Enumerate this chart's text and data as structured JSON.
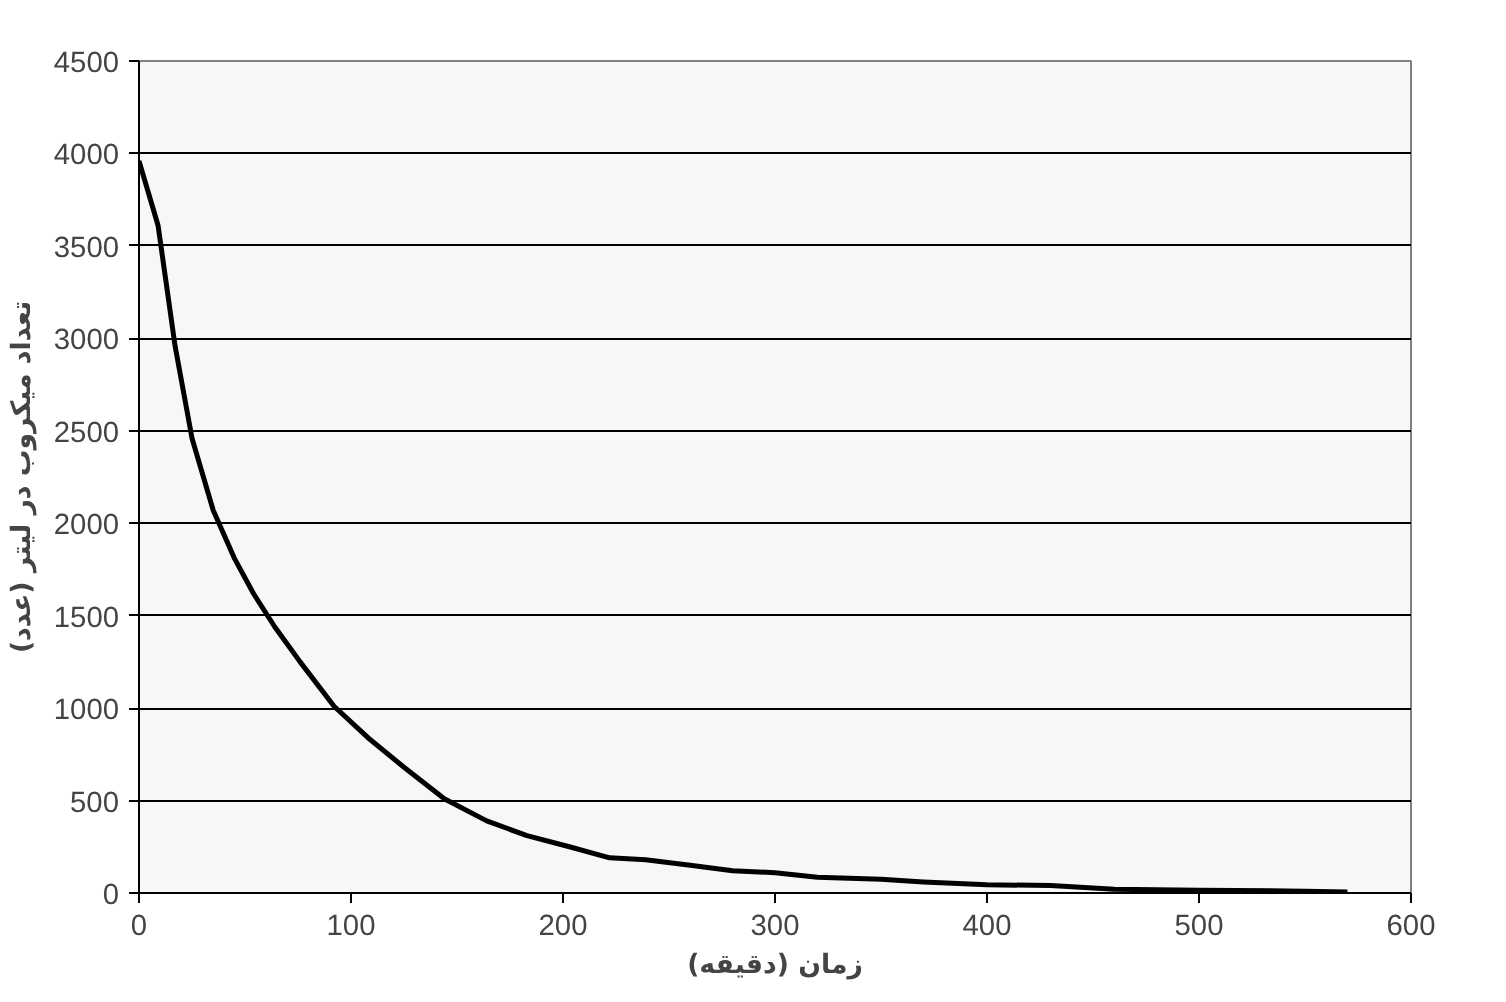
{
  "chart_data": {
    "type": "line",
    "xlabel": "زمان (دقیقه)",
    "ylabel": "تعداد میکروب در لیتر (عدد)",
    "x": [
      0,
      9,
      17,
      25,
      35,
      45,
      54,
      64,
      76,
      92,
      108,
      125,
      144,
      164,
      183,
      203,
      222,
      239,
      260,
      280,
      300,
      320,
      350,
      370,
      400,
      430,
      460,
      500,
      550,
      570
    ],
    "series": [
      {
        "color": "#000000",
        "values": [
          3960,
          3610,
          2960,
          2460,
          2070,
          1810,
          1620,
          1440,
          1250,
          1010,
          840,
          680,
          510,
          390,
          310,
          250,
          190,
          180,
          150,
          120,
          110,
          85,
          75,
          60,
          45,
          40,
          20,
          15,
          10,
          5
        ]
      }
    ],
    "xlim": [
      0,
      600
    ],
    "xticks": [
      0,
      100,
      200,
      300,
      400,
      500,
      600
    ],
    "ylim": [
      0,
      4500
    ],
    "yticks": [
      0,
      500,
      1000,
      1500,
      2000,
      2500,
      3000,
      3500,
      4000,
      4500
    ],
    "grid": "y",
    "line_style": "solid",
    "marker": "none"
  }
}
